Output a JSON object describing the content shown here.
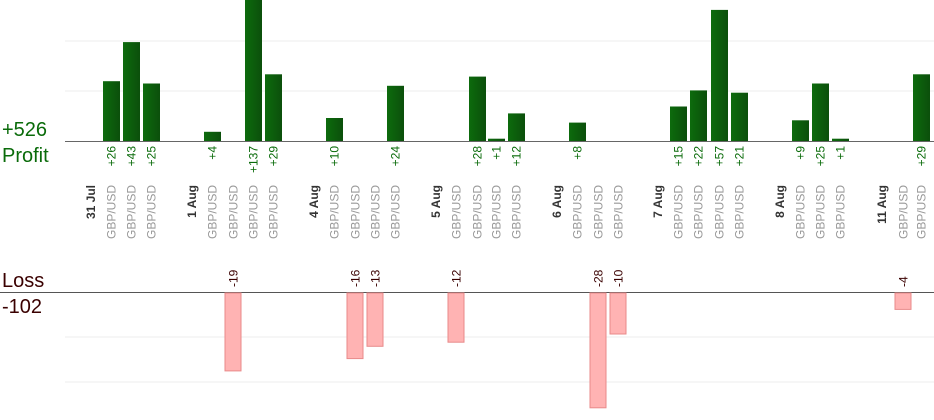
{
  "summary": {
    "profit_total": "+526",
    "profit_label": "Profit",
    "loss_label": "Loss",
    "loss_total": "-102"
  },
  "colors": {
    "profit_bar": "#0d6b0d",
    "loss_bar": "#ffb3b3",
    "profit_text": "#0a6b0a",
    "loss_text": "#3a0000",
    "pair_text": "#999999",
    "date_text": "#333333"
  },
  "chart_data": {
    "type": "bar",
    "series": [
      {
        "name": "Profit",
        "axis": "profit",
        "ylim": [
          0,
          60
        ]
      },
      {
        "name": "Loss",
        "axis": "loss",
        "ylim": [
          -28,
          0
        ]
      }
    ],
    "trades": [
      {
        "date": "31 Jul",
        "pair": "GBP/USD",
        "value": 26,
        "label": "+26"
      },
      {
        "pair": "GBP/USD",
        "value": 43,
        "label": "+43"
      },
      {
        "pair": "GBP/USD",
        "value": 25,
        "label": "+25"
      },
      {
        "pair": "GBP/USD",
        "value": -19,
        "label": "-19"
      },
      {
        "date": "1 Aug",
        "pair": "GBP/USD",
        "value": 4,
        "label": "+4"
      },
      {
        "pair": "GBP/USD",
        "value": 137,
        "label": "+137"
      },
      {
        "pair": "GBP/USD",
        "value": 29,
        "label": "+29"
      },
      {
        "date": "4 Aug",
        "pair": "GBP/USD",
        "value": 10,
        "label": "+10"
      },
      {
        "pair": "GBP/USD",
        "value": -16,
        "label": "-16"
      },
      {
        "pair": "GBP/USD",
        "value": -13,
        "label": "-13"
      },
      {
        "pair": "GBP/USD",
        "value": 24,
        "label": "+24"
      },
      {
        "date": "5 Aug",
        "pair": "GBP/USD",
        "value": -12,
        "label": "-12"
      },
      {
        "pair": "GBP/USD",
        "value": 28,
        "label": "+28"
      },
      {
        "pair": "GBP/USD",
        "value": 1,
        "label": "+1"
      },
      {
        "pair": "GBP/USD",
        "value": 12,
        "label": "+12"
      },
      {
        "date": "6 Aug",
        "pair": "GBP/USD",
        "value": 8,
        "label": "+8"
      },
      {
        "pair": "GBP/USD",
        "value": -28,
        "label": "-28"
      },
      {
        "pair": "GBP/USD",
        "value": -10,
        "label": "-10"
      },
      {
        "date": "7 Aug",
        "pair": "GBP/USD",
        "value": 15,
        "label": "+15"
      },
      {
        "pair": "GBP/USD",
        "value": 22,
        "label": "+22"
      },
      {
        "pair": "GBP/USD",
        "value": 57,
        "label": "+57"
      },
      {
        "pair": "GBP/USD",
        "value": 21,
        "label": "+21"
      },
      {
        "date": "8 Aug",
        "pair": "GBP/USD",
        "value": 9,
        "label": "+9"
      },
      {
        "pair": "GBP/USD",
        "value": 25,
        "label": "+25"
      },
      {
        "pair": "GBP/USD",
        "value": 1,
        "label": "+1"
      },
      {
        "date": "11 Aug",
        "pair": "GBP/USD",
        "value": -4,
        "label": "-4"
      },
      {
        "pair": "GBP/USD",
        "value": 29,
        "label": "+29"
      }
    ],
    "grid": true
  }
}
